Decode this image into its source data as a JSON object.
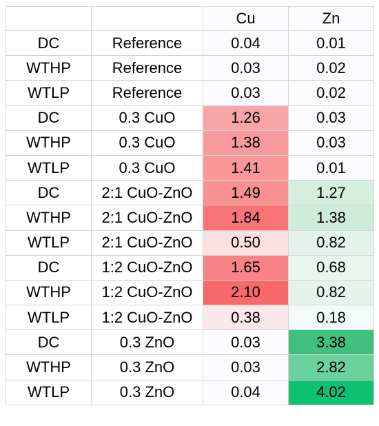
{
  "table": {
    "columns": [
      "",
      "",
      "Cu",
      "Zn"
    ],
    "rows": [
      {
        "method": "DC",
        "sample": "Reference",
        "cu": "0.04",
        "zn": "0.01",
        "cu_color": "#fcfcff",
        "zn_color": "#fcfcff"
      },
      {
        "method": "WTHP",
        "sample": "Reference",
        "cu": "0.03",
        "zn": "0.02",
        "cu_color": "#fcfcff",
        "zn_color": "#fcfcff"
      },
      {
        "method": "WTLP",
        "sample": "Reference",
        "cu": "0.03",
        "zn": "0.02",
        "cu_color": "#fcfcff",
        "zn_color": "#fcfcff"
      },
      {
        "method": "DC",
        "sample": "0.3 CuO",
        "cu": "1.26",
        "zn": "0.03",
        "cu_color": "#f9a4a6",
        "zn_color": "#fcfcff"
      },
      {
        "method": "WTHP",
        "sample": "0.3 CuO",
        "cu": "1.38",
        "zn": "0.03",
        "cu_color": "#f99a9c",
        "zn_color": "#fcfcff"
      },
      {
        "method": "WTLP",
        "sample": "0.3 CuO",
        "cu": "1.41",
        "zn": "0.01",
        "cu_color": "#f99799",
        "zn_color": "#fcfcff"
      },
      {
        "method": "DC",
        "sample": "2:1 CuO-ZnO",
        "cu": "1.49",
        "zn": "1.27",
        "cu_color": "#f99092",
        "zn_color": "#d4eedf"
      },
      {
        "method": "WTHP",
        "sample": "2:1 CuO-ZnO",
        "cu": "1.84",
        "zn": "1.38",
        "cu_color": "#f87476",
        "zn_color": "#cfebdb"
      },
      {
        "method": "WTLP",
        "sample": "2:1 CuO-ZnO",
        "cu": "0.50",
        "zn": "0.82",
        "cu_color": "#fbe0e2",
        "zn_color": "#e4f4ec"
      },
      {
        "method": "DC",
        "sample": "1:2 CuO-ZnO",
        "cu": "1.65",
        "zn": "0.68",
        "cu_color": "#f88385",
        "zn_color": "#e8f6ee"
      },
      {
        "method": "WTHP",
        "sample": "1:2 CuO-ZnO",
        "cu": "2.10",
        "zn": "0.82",
        "cu_color": "#f8696b",
        "zn_color": "#e4f4ec"
      },
      {
        "method": "WTLP",
        "sample": "1:2 CuO-ZnO",
        "cu": "0.38",
        "zn": "0.18",
        "cu_color": "#fbe8ea",
        "zn_color": "#f4f9f9"
      },
      {
        "method": "DC",
        "sample": "0.3 ZnO",
        "cu": "0.03",
        "zn": "3.38",
        "cu_color": "#fcfcff",
        "zn_color": "#3fc07f"
      },
      {
        "method": "WTHP",
        "sample": "0.3 ZnO",
        "cu": "0.03",
        "zn": "2.82",
        "cu_color": "#fcfcff",
        "zn_color": "#6ad09c"
      },
      {
        "method": "WTLP",
        "sample": "0.3 ZnO",
        "cu": "0.04",
        "zn": "4.02",
        "cu_color": "#fcfcff",
        "zn_color": "#0ec172"
      }
    ]
  }
}
